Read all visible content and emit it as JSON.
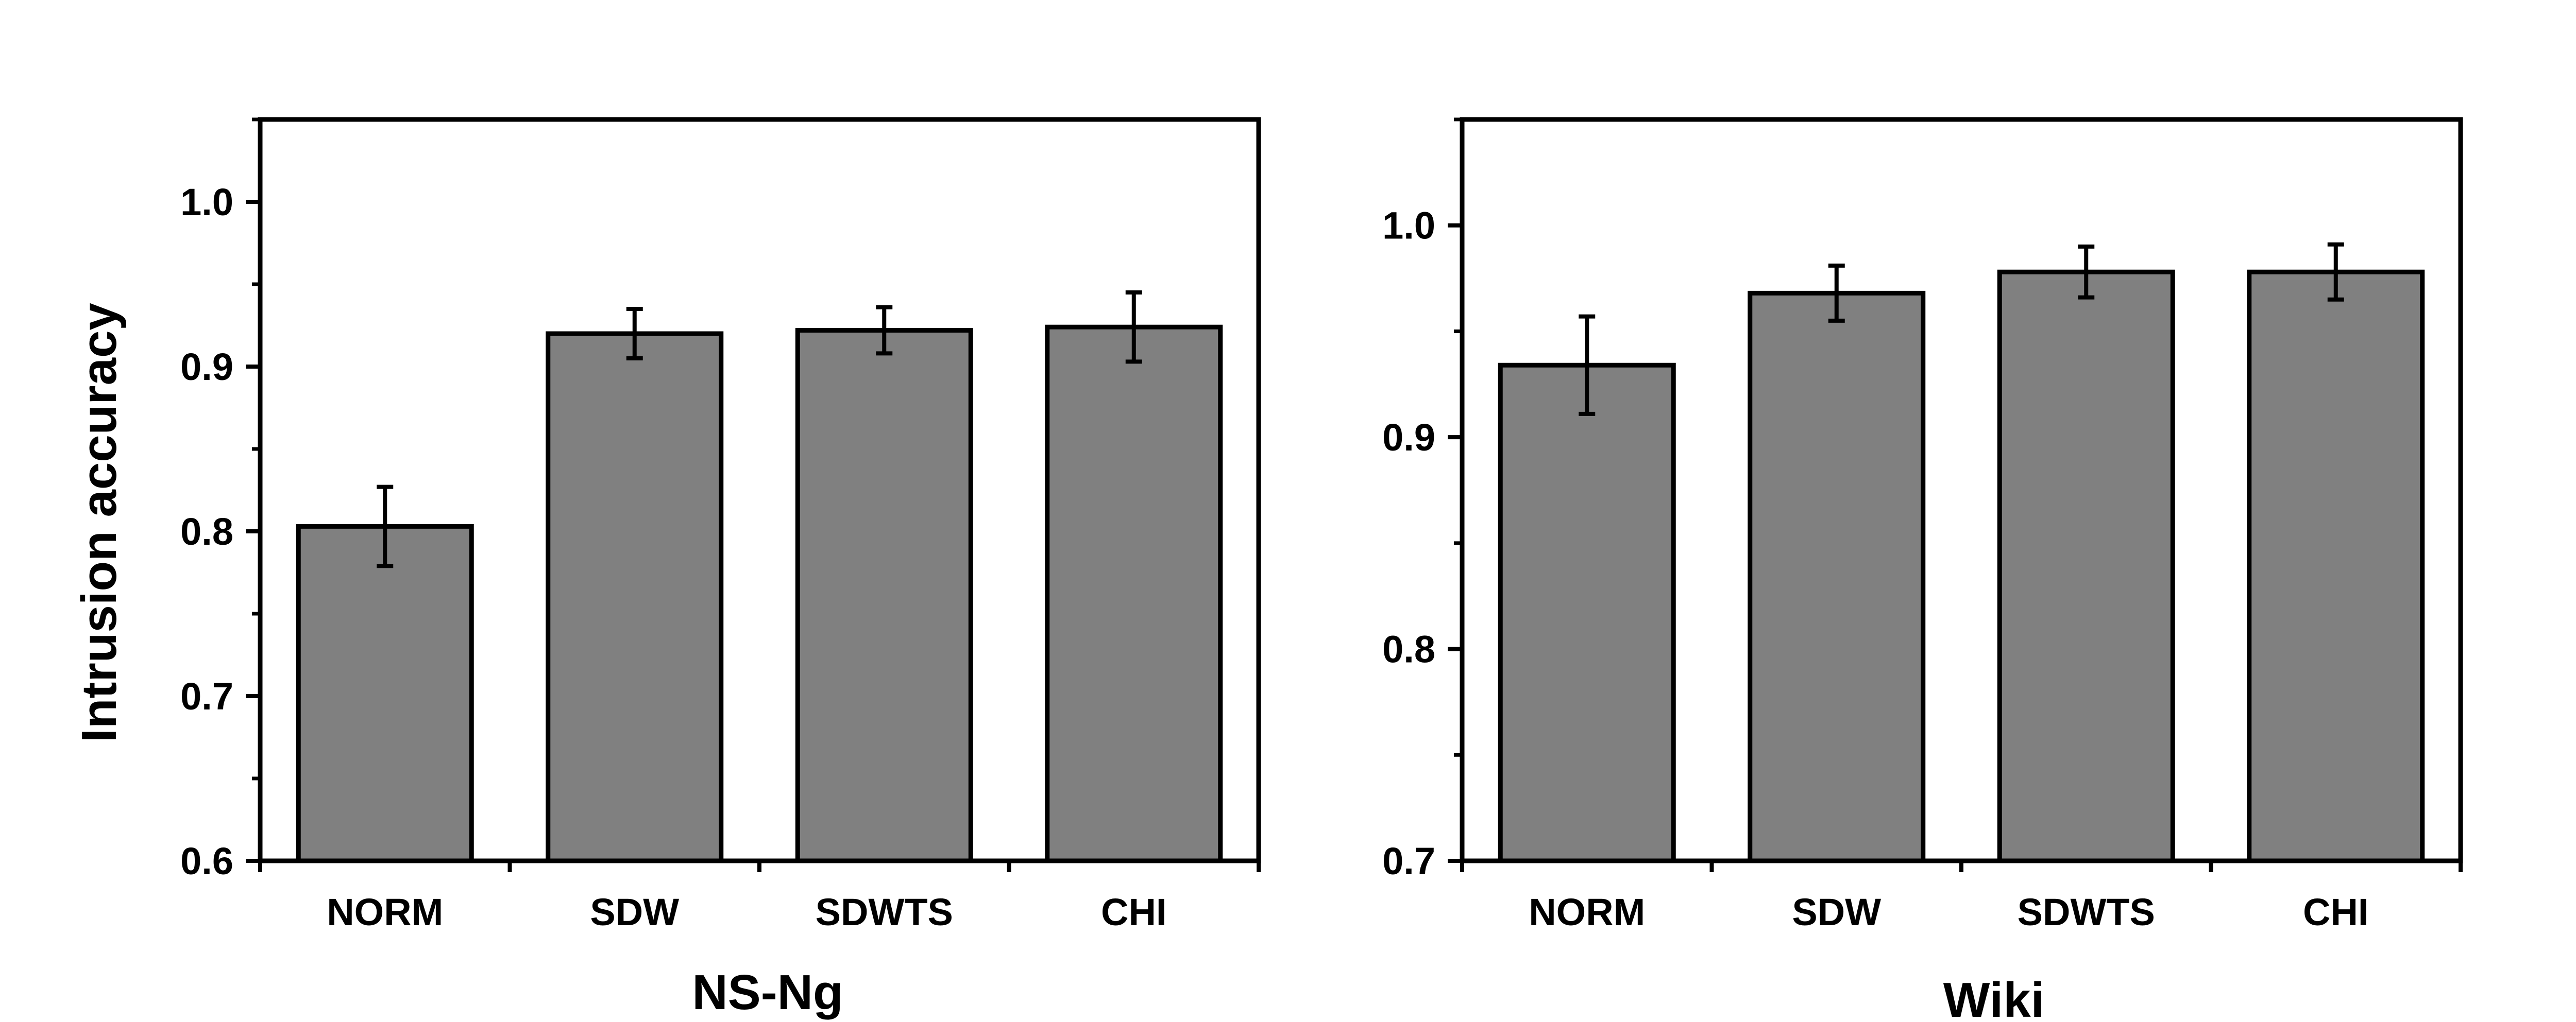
{
  "chart_data": [
    {
      "type": "bar",
      "title": "",
      "xlabel": "NS-Ng",
      "ylabel": "Intrusion accuracy",
      "categories": [
        "NORM",
        "SDW",
        "SDWTS",
        "CHI"
      ],
      "values": [
        0.803,
        0.92,
        0.922,
        0.924
      ],
      "errors": [
        0.024,
        0.015,
        0.014,
        0.021
      ],
      "ylim": [
        0.6,
        1.05
      ],
      "yticks": [
        "0.6",
        "0.7",
        "0.8",
        "0.9",
        "1.0"
      ],
      "bar_color": "#808080",
      "grid": false
    },
    {
      "type": "bar",
      "title": "",
      "xlabel": "Wiki",
      "ylabel": "",
      "categories": [
        "NORM",
        "SDW",
        "SDWTS",
        "CHI"
      ],
      "values": [
        0.934,
        0.968,
        0.978,
        0.978
      ],
      "errors": [
        0.023,
        0.013,
        0.012,
        0.013
      ],
      "ylim": [
        0.7,
        1.05
      ],
      "yticks": [
        "0.7",
        "0.8",
        "0.9",
        "1.0"
      ],
      "bar_color": "#808080",
      "grid": false
    }
  ]
}
